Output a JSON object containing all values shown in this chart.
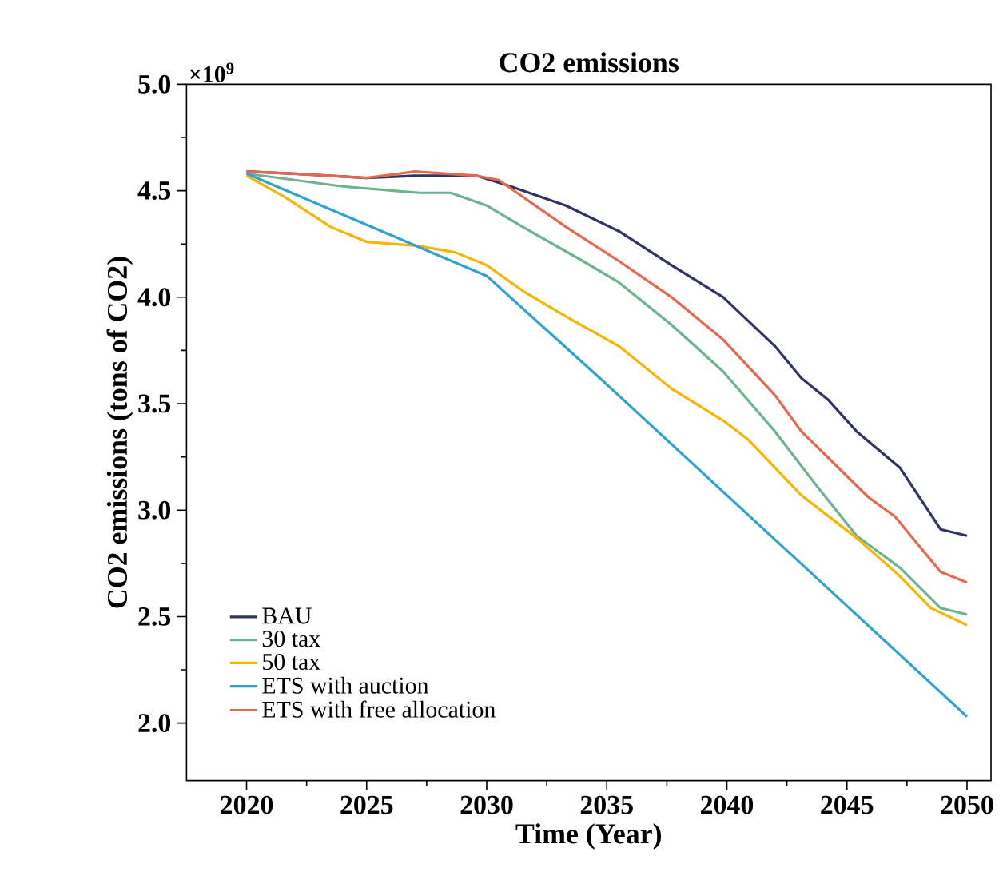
{
  "chart_data": {
    "type": "line",
    "title": "CO2 emissions",
    "xlabel": "Time (Year)",
    "ylabel": "CO2 emissions (tons of CO2)",
    "annotations": [
      "×10$^{9}$"
    ],
    "xlim": [
      2017.5,
      2051
    ],
    "ylim": [
      1.73,
      5.0
    ],
    "xticks": [
      2020,
      2025,
      2030,
      2035,
      2040,
      2045,
      2050
    ],
    "yticks": [
      {
        "value": 2,
        "label": "2.0"
      },
      {
        "value": 2.5,
        "label": "2.5"
      },
      {
        "value": 3,
        "label": "3.0"
      },
      {
        "value": 3.5,
        "label": "3.5"
      },
      {
        "value": 4,
        "label": "4.0"
      },
      {
        "value": 4.5,
        "label": "4.5"
      },
      {
        "value": 5,
        "label": "5.0"
      }
    ],
    "grid": false,
    "legend": "bottom left",
    "marker": "none",
    "line_style": "solid",
    "series": [
      {
        "name": "BAU",
        "color": "#2e3566",
        "x": [
          2020,
          2022,
          2025,
          2027,
          2029.6,
          2031,
          2033.3,
          2035.5,
          2037.7,
          2039.85,
          2042,
          2043.1,
          2044.2,
          2045.4,
          2047.2,
          2048.9,
          2050
        ],
        "values": [
          4.59,
          4.58,
          4.56,
          4.57,
          4.57,
          4.52,
          4.43,
          4.31,
          4.15,
          4.0,
          3.77,
          3.62,
          3.52,
          3.37,
          3.2,
          2.91,
          2.88
        ]
      },
      {
        "name": "30 tax",
        "color": "#6db38f",
        "x": [
          2020,
          2024,
          2027.2,
          2028.5,
          2030,
          2031.5,
          2034,
          2035.5,
          2037.7,
          2039.85,
          2042,
          2043.7,
          2045.4,
          2047.2,
          2048.9,
          2050
        ],
        "values": [
          4.58,
          4.52,
          4.49,
          4.49,
          4.43,
          4.33,
          4.17,
          4.07,
          3.87,
          3.65,
          3.37,
          3.12,
          2.88,
          2.73,
          2.54,
          2.51
        ]
      },
      {
        "name": "50 tax",
        "color": "#f7b500",
        "x": [
          2020,
          2021.6,
          2023.5,
          2025,
          2027.2,
          2028.7,
          2030,
          2031.5,
          2033.3,
          2035.5,
          2037.7,
          2039.85,
          2040.9,
          2043.1,
          2045.4,
          2047.2,
          2048.5,
          2050
        ],
        "values": [
          4.57,
          4.47,
          4.33,
          4.26,
          4.24,
          4.21,
          4.15,
          4.03,
          3.91,
          3.77,
          3.57,
          3.42,
          3.33,
          3.07,
          2.87,
          2.69,
          2.54,
          2.46
        ]
      },
      {
        "name": "ETS with auction",
        "color": "#2fa3d0",
        "x": [
          2020,
          2025,
          2030,
          2035,
          2040,
          2045,
          2050
        ],
        "values": [
          4.58,
          4.34,
          4.1,
          3.59,
          3.07,
          2.55,
          2.03
        ]
      },
      {
        "name": "ETS with free allocation",
        "color": "#e8674f",
        "x": [
          2020,
          2022,
          2025,
          2027,
          2029.6,
          2030.5,
          2033.3,
          2035.5,
          2037.7,
          2039.85,
          2042,
          2043.1,
          2045.9,
          2047,
          2048.9,
          2050
        ],
        "values": [
          4.59,
          4.58,
          4.56,
          4.59,
          4.57,
          4.55,
          4.33,
          4.17,
          4.0,
          3.8,
          3.54,
          3.37,
          3.06,
          2.97,
          2.71,
          2.66
        ]
      }
    ]
  }
}
